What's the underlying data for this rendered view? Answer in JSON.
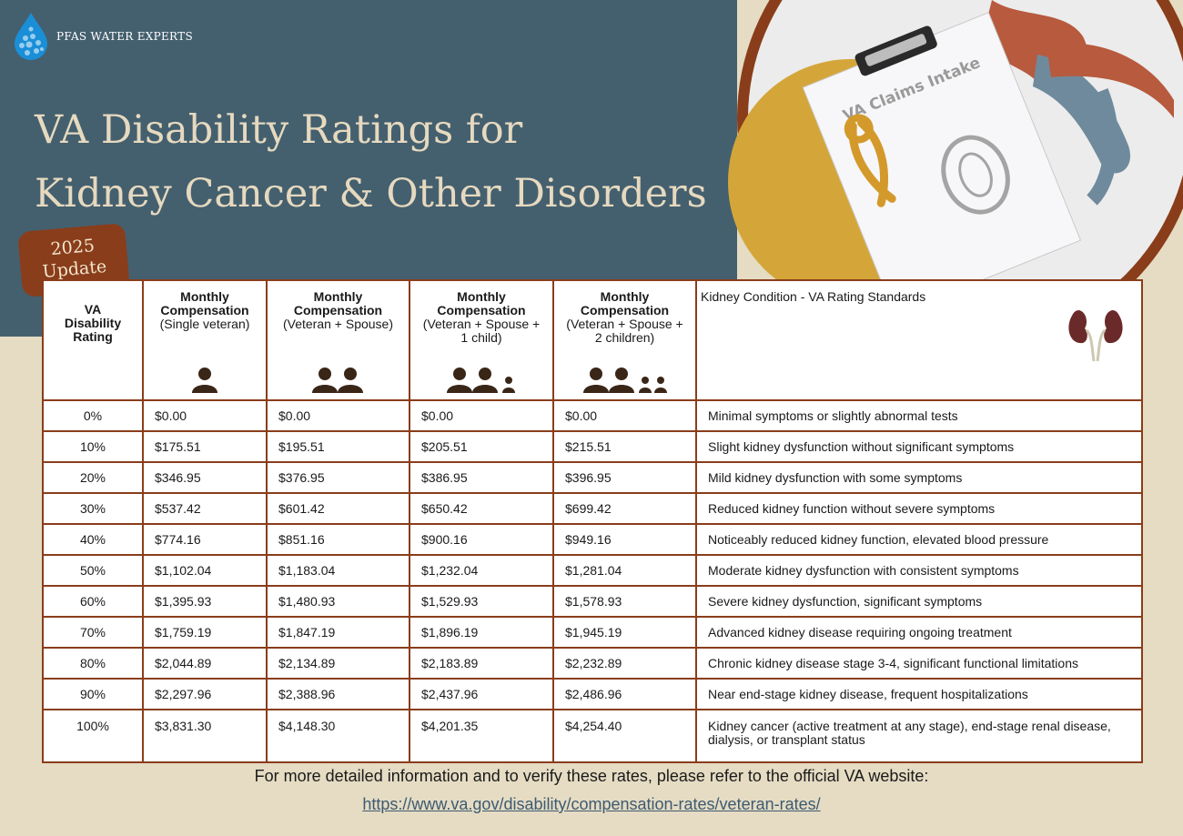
{
  "brand": {
    "logo_text": "PFAS WATER EXPERTS"
  },
  "title": {
    "line1": "VA Disability Ratings for",
    "line2": "Kidney Cancer & Other Disorders"
  },
  "badge": {
    "year": "2025",
    "label": "Update"
  },
  "illustration": {
    "clipboard_text": "VA Claims Intake"
  },
  "colors": {
    "panel": "#44606f",
    "background": "#e5dcc3",
    "border": "#8a3d1a",
    "title": "#e6d9bf"
  },
  "table": {
    "headers": {
      "rating": "VA Disability Rating",
      "single_bold": "Monthly Compensation",
      "single_sub": "(Single veteran)",
      "spouse_bold": "Monthly Compensation",
      "spouse_sub": "(Veteran + Spouse)",
      "child1_bold": "Monthly Compensation",
      "child1_sub": "(Veteran + Spouse + 1 child)",
      "child2_bold": "Monthly Compensation",
      "child2_sub": "(Veteran + Spouse + 2 children)",
      "condition": "Kidney Condition - VA Rating Standards"
    },
    "rows": [
      {
        "rating": "0%",
        "single": "$0.00",
        "spouse": "$0.00",
        "child1": "$0.00",
        "child2": "$0.00",
        "condition": "Minimal symptoms or slightly abnormal tests"
      },
      {
        "rating": "10%",
        "single": "$175.51",
        "spouse": "$195.51",
        "child1": "$205.51",
        "child2": "$215.51",
        "condition": "Slight kidney dysfunction without significant symptoms"
      },
      {
        "rating": "20%",
        "single": "$346.95",
        "spouse": "$376.95",
        "child1": "$386.95",
        "child2": "$396.95",
        "condition": "Mild kidney dysfunction with some symptoms"
      },
      {
        "rating": "30%",
        "single": "$537.42",
        "spouse": "$601.42",
        "child1": "$650.42",
        "child2": "$699.42",
        "condition": "Reduced kidney function without severe symptoms"
      },
      {
        "rating": "40%",
        "single": "$774.16",
        "spouse": "$851.16",
        "child1": "$900.16",
        "child2": "$949.16",
        "condition": "Noticeably reduced kidney function, elevated blood pressure"
      },
      {
        "rating": "50%",
        "single": "$1,102.04",
        "spouse": "$1,183.04",
        "child1": "$1,232.04",
        "child2": "$1,281.04",
        "condition": "Moderate kidney dysfunction with consistent symptoms"
      },
      {
        "rating": "60%",
        "single": "$1,395.93",
        "spouse": "$1,480.93",
        "child1": "$1,529.93",
        "child2": "$1,578.93",
        "condition": "Severe kidney dysfunction, significant symptoms"
      },
      {
        "rating": "70%",
        "single": "$1,759.19",
        "spouse": "$1,847.19",
        "child1": "$1,896.19",
        "child2": "$1,945.19",
        "condition": "Advanced kidney disease requiring ongoing treatment"
      },
      {
        "rating": "80%",
        "single": "$2,044.89",
        "spouse": "$2,134.89",
        "child1": "$2,183.89",
        "child2": "$2,232.89",
        "condition": "Chronic kidney disease stage 3-4, significant functional limitations"
      },
      {
        "rating": "90%",
        "single": "$2,297.96",
        "spouse": "$2,388.96",
        "child1": "$2,437.96",
        "child2": "$2,486.96",
        "condition": "Near end-stage kidney disease, frequent hospitalizations"
      },
      {
        "rating": "100%",
        "single": "$3,831.30",
        "spouse": "$4,148.30",
        "child1": "$4,201.35",
        "child2": "$4,254.40",
        "condition": "Kidney cancer (active treatment at any stage), end-stage renal disease, dialysis, or transplant status"
      }
    ]
  },
  "footer": {
    "note": "For more detailed information and to verify these rates, please refer to the official VA website:",
    "link": "https://www.va.gov/disability/compensation-rates/veteran-rates/"
  }
}
